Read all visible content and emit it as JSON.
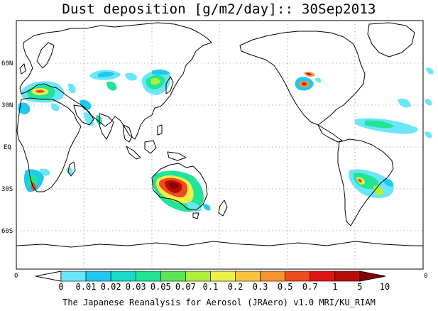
{
  "title": "Dust deposition [g/m2/day]:: 30Sep2013",
  "lat_labels": [
    "60N",
    "30N",
    "EQ",
    "30S",
    "60S"
  ],
  "colorbar": {
    "labels": [
      "0",
      "0.01",
      "0.02",
      "0.03",
      "0.05",
      "0.07",
      "0.1",
      "0.2",
      "0.3",
      "0.5",
      "0.7",
      "1",
      "5",
      "10"
    ],
    "colors": [
      "#ffffff",
      "#6ae6f8",
      "#20c8f0",
      "#16dcc8",
      "#20e496",
      "#5ae654",
      "#aef03c",
      "#eef046",
      "#f8c440",
      "#f69430",
      "#f04a20",
      "#e01414",
      "#b80c0c",
      "#8a0000"
    ],
    "end_left": "0",
    "end_right": "0"
  },
  "footer": "The Japanese Reanalysis for Aerosol (JRAero) v1.0 MRI/KU_RIAM"
}
